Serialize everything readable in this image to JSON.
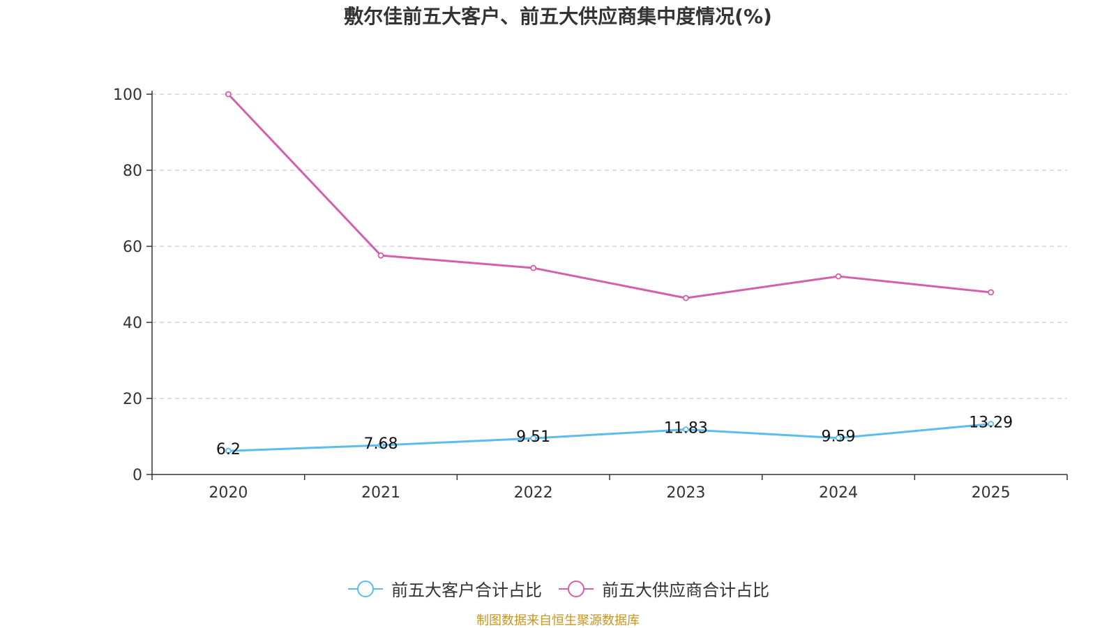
{
  "chart_data": {
    "type": "line",
    "title": "敷尔佳前五大客户、前五大供应商集中度情况(%)",
    "categories": [
      "2020",
      "2021",
      "2022",
      "2023",
      "2024",
      "2025"
    ],
    "series": [
      {
        "name": "前五大客户合计占比",
        "values": [
          6.2,
          7.68,
          9.51,
          11.83,
          9.59,
          13.29
        ],
        "labels": [
          "6.2",
          "7.68",
          "9.51",
          "11.83",
          "9.59",
          "13.29"
        ],
        "color": "#5BBCF0",
        "show_labels": true
      },
      {
        "name": "前五大供应商合计占比",
        "values": [
          100,
          57.6,
          54.3,
          46.4,
          52.1,
          47.9
        ],
        "color": "#D45FAA",
        "show_labels": false
      }
    ],
    "ylim": [
      0,
      100
    ],
    "yticks": [
      "0",
      "20",
      "40",
      "60",
      "80",
      "100"
    ],
    "grid": true,
    "legend_position": "bottom-center",
    "xlabel": "",
    "ylabel": ""
  },
  "source_note": "制图数据来自恒生聚源数据库",
  "colors": {
    "source_note": "#C8951E",
    "axis": "#333333",
    "grid": "#CCCCCC"
  }
}
